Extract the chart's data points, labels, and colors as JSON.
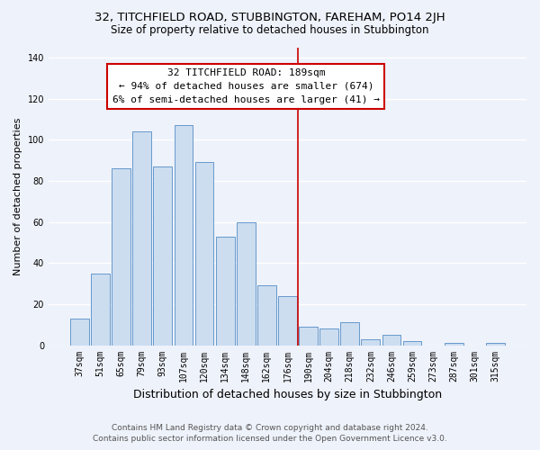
{
  "title": "32, TITCHFIELD ROAD, STUBBINGTON, FAREHAM, PO14 2JH",
  "subtitle": "Size of property relative to detached houses in Stubbington",
  "xlabel": "Distribution of detached houses by size in Stubbington",
  "ylabel": "Number of detached properties",
  "categories": [
    "37sqm",
    "51sqm",
    "65sqm",
    "79sqm",
    "93sqm",
    "107sqm",
    "120sqm",
    "134sqm",
    "148sqm",
    "162sqm",
    "176sqm",
    "190sqm",
    "204sqm",
    "218sqm",
    "232sqm",
    "246sqm",
    "259sqm",
    "273sqm",
    "287sqm",
    "301sqm",
    "315sqm"
  ],
  "values": [
    13,
    35,
    86,
    104,
    87,
    107,
    89,
    53,
    60,
    29,
    24,
    9,
    8,
    11,
    3,
    5,
    2,
    0,
    1,
    0,
    1
  ],
  "bar_color": "#ccddf0",
  "bar_edge_color": "#6699cc",
  "vline_color": "#cc0000",
  "annotation_title": "32 TITCHFIELD ROAD: 189sqm",
  "annotation_line1": "← 94% of detached houses are smaller (674)",
  "annotation_line2": "6% of semi-detached houses are larger (41) →",
  "annotation_box_color": "#ffffff",
  "annotation_box_edge": "#cc0000",
  "ylim": [
    0,
    145
  ],
  "yticks": [
    0,
    20,
    40,
    60,
    80,
    100,
    120,
    140
  ],
  "footer_line1": "Contains HM Land Registry data © Crown copyright and database right 2024.",
  "footer_line2": "Contains public sector information licensed under the Open Government Licence v3.0.",
  "background_color": "#eef2fa",
  "grid_color": "#ffffff",
  "title_fontsize": 9.5,
  "subtitle_fontsize": 8.5,
  "xlabel_fontsize": 9,
  "ylabel_fontsize": 8,
  "tick_fontsize": 7,
  "annotation_fontsize": 8,
  "footer_fontsize": 6.5
}
